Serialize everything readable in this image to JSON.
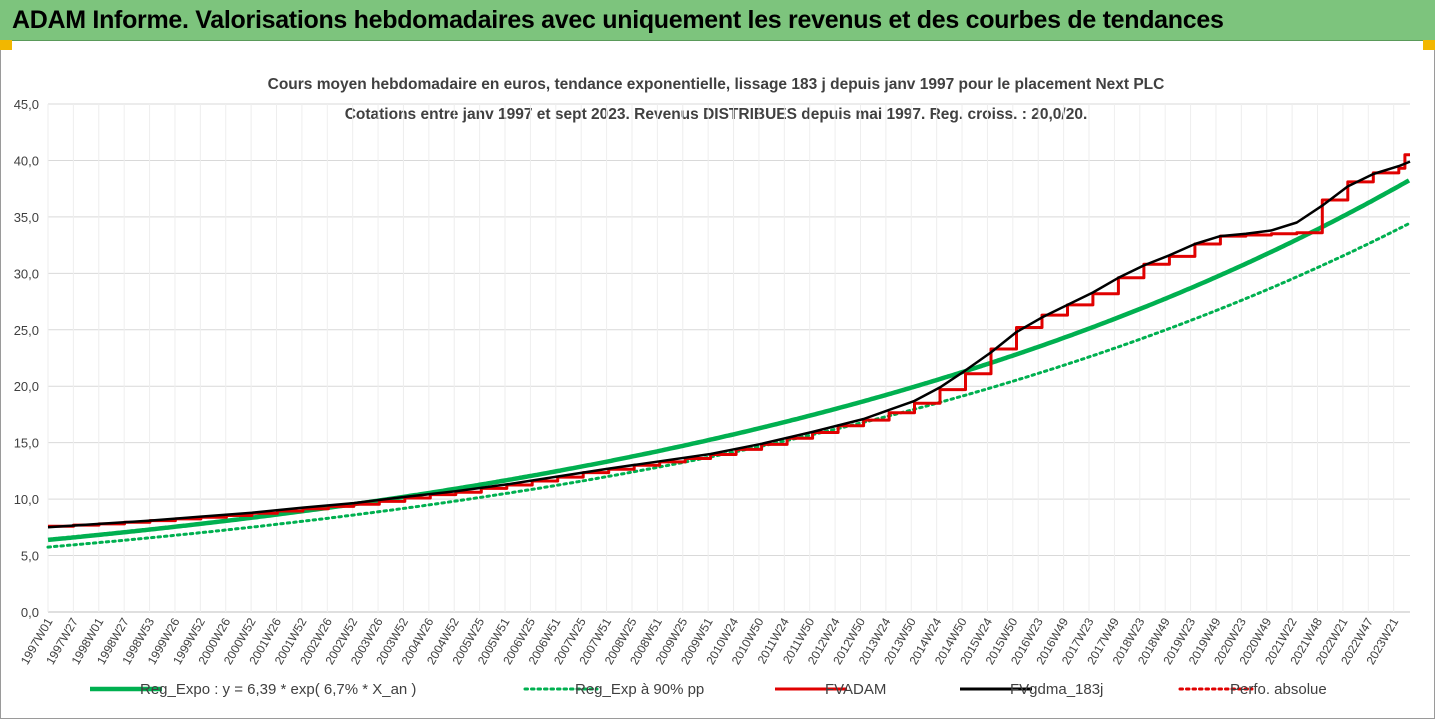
{
  "banner": {
    "title": "ADAM Informe. Valorisations hebdomadaires avec uniquement les revenus et des courbes de tendances"
  },
  "colors": {
    "banner_bg": "#7dc47d",
    "corner_accent": "#f2b700",
    "reg_expo": "#00b050",
    "fvadam": "#e00000",
    "fvgdma": "#000000",
    "perfo": "#e00000",
    "grid": "#d9d9d9"
  },
  "chart_data": {
    "type": "line",
    "title_line1": "Cours moyen hebdomadaire en euros, tendance exponentielle, lissage 183 j depuis janv 1997 pour le placement Next PLC",
    "title_line2": "Cotations entre janv 1997 et sept 2023. Revenus DISTRIBUES depuis mai 1997. Reg. croiss. : 20,0/20.",
    "ylim": [
      0,
      45
    ],
    "y_ticks": [
      "0,0",
      "5,0",
      "10,0",
      "15,0",
      "20,0",
      "25,0",
      "30,0",
      "35,0",
      "40,0",
      "45,0"
    ],
    "x_range": [
      "1997W01",
      "2023W38"
    ],
    "x_ticks": [
      "1997W01",
      "1997W27",
      "1998W01",
      "1998W27",
      "1998W53",
      "1999W26",
      "1999W52",
      "2000W26",
      "2000W52",
      "2001W26",
      "2001W52",
      "2002W26",
      "2002W52",
      "2003W26",
      "2003W52",
      "2004W26",
      "2004W52",
      "2005W25",
      "2005W51",
      "2006W25",
      "2006W51",
      "2007W25",
      "2007W51",
      "2008W25",
      "2008W51",
      "2009W25",
      "2009W51",
      "2010W24",
      "2010W50",
      "2011W24",
      "2011W50",
      "2012W24",
      "2012W50",
      "2013W24",
      "2013W50",
      "2014W24",
      "2014W50",
      "2015W24",
      "2015W50",
      "2016W23",
      "2016W49",
      "2017W23",
      "2017W49",
      "2018W23",
      "2018W49",
      "2019W23",
      "2019W49",
      "2020W23",
      "2020W49",
      "2021W22",
      "2021W48",
      "2022W21",
      "2022W47",
      "2023W21"
    ],
    "gridlines": "horizontal",
    "legend_position": "bottom",
    "series": [
      {
        "name": "Reg_Expo : y = 6,39 * exp( 6,7% * X_an )",
        "style": "solid-thick",
        "color": "#00b050",
        "formula": {
          "a": 6.39,
          "rate": 0.067,
          "x_start": 1997.0
        }
      },
      {
        "name": "Reg_Exp à 90% pp",
        "style": "dotted",
        "color": "#00b050",
        "formula": {
          "a": 5.751,
          "rate": 0.067,
          "x_start": 1997.0
        }
      },
      {
        "name": "FVADAM",
        "style": "step",
        "color": "#e00000",
        "points": [
          [
            1997.0,
            7.6
          ],
          [
            1997.5,
            7.7
          ],
          [
            1998.0,
            7.8
          ],
          [
            1998.5,
            7.95
          ],
          [
            1999.0,
            8.1
          ],
          [
            1999.5,
            8.25
          ],
          [
            2000.0,
            8.4
          ],
          [
            2000.5,
            8.55
          ],
          [
            2001.0,
            8.75
          ],
          [
            2001.5,
            8.95
          ],
          [
            2002.0,
            9.15
          ],
          [
            2002.5,
            9.35
          ],
          [
            2003.0,
            9.55
          ],
          [
            2003.5,
            9.8
          ],
          [
            2004.0,
            10.1
          ],
          [
            2004.5,
            10.4
          ],
          [
            2005.0,
            10.6
          ],
          [
            2005.5,
            10.95
          ],
          [
            2006.0,
            11.25
          ],
          [
            2006.5,
            11.6
          ],
          [
            2007.0,
            11.95
          ],
          [
            2007.5,
            12.35
          ],
          [
            2008.0,
            12.65
          ],
          [
            2008.5,
            13.0
          ],
          [
            2009.0,
            13.3
          ],
          [
            2009.5,
            13.6
          ],
          [
            2010.0,
            13.95
          ],
          [
            2010.5,
            14.4
          ],
          [
            2011.0,
            14.85
          ],
          [
            2011.5,
            15.4
          ],
          [
            2012.0,
            15.9
          ],
          [
            2012.5,
            16.5
          ],
          [
            2013.0,
            17.0
          ],
          [
            2013.5,
            17.65
          ],
          [
            2014.0,
            18.5
          ],
          [
            2014.5,
            19.7
          ],
          [
            2015.0,
            21.1
          ],
          [
            2015.5,
            23.3
          ],
          [
            2016.0,
            25.2
          ],
          [
            2016.5,
            26.3
          ],
          [
            2017.0,
            27.2
          ],
          [
            2017.5,
            28.2
          ],
          [
            2018.0,
            29.6
          ],
          [
            2018.5,
            30.8
          ],
          [
            2019.0,
            31.5
          ],
          [
            2019.5,
            32.6
          ],
          [
            2020.0,
            33.3
          ],
          [
            2020.5,
            33.4
          ],
          [
            2021.0,
            33.5
          ],
          [
            2021.5,
            33.6
          ],
          [
            2022.0,
            36.5
          ],
          [
            2022.5,
            38.1
          ],
          [
            2023.0,
            38.9
          ],
          [
            2023.5,
            39.3
          ],
          [
            2023.62,
            40.5
          ],
          [
            2023.72,
            40.5
          ]
        ]
      },
      {
        "name": "FVgdma_183j",
        "style": "solid",
        "color": "#000000",
        "points": [
          [
            1997.0,
            7.5
          ],
          [
            1998.0,
            7.8
          ],
          [
            1999.0,
            8.1
          ],
          [
            2000.0,
            8.45
          ],
          [
            2001.0,
            8.8
          ],
          [
            2002.0,
            9.25
          ],
          [
            2003.0,
            9.65
          ],
          [
            2004.0,
            10.2
          ],
          [
            2005.0,
            10.7
          ],
          [
            2006.0,
            11.3
          ],
          [
            2007.0,
            12.0
          ],
          [
            2008.0,
            12.7
          ],
          [
            2009.0,
            13.35
          ],
          [
            2010.0,
            14.0
          ],
          [
            2011.0,
            14.9
          ],
          [
            2012.0,
            15.95
          ],
          [
            2013.0,
            17.1
          ],
          [
            2014.0,
            18.7
          ],
          [
            2014.5,
            19.9
          ],
          [
            2015.0,
            21.4
          ],
          [
            2015.5,
            23.0
          ],
          [
            2016.0,
            24.8
          ],
          [
            2016.5,
            26.1
          ],
          [
            2017.0,
            27.2
          ],
          [
            2017.5,
            28.3
          ],
          [
            2018.0,
            29.6
          ],
          [
            2018.5,
            30.7
          ],
          [
            2019.0,
            31.6
          ],
          [
            2019.5,
            32.6
          ],
          [
            2020.0,
            33.3
          ],
          [
            2020.5,
            33.5
          ],
          [
            2021.0,
            33.8
          ],
          [
            2021.5,
            34.5
          ],
          [
            2022.0,
            36.0
          ],
          [
            2022.5,
            37.7
          ],
          [
            2023.0,
            38.8
          ],
          [
            2023.5,
            39.5
          ],
          [
            2023.72,
            39.9
          ]
        ]
      },
      {
        "name": "Perfo. absolue",
        "style": "dotted",
        "color": "#e00000",
        "points": []
      }
    ]
  }
}
